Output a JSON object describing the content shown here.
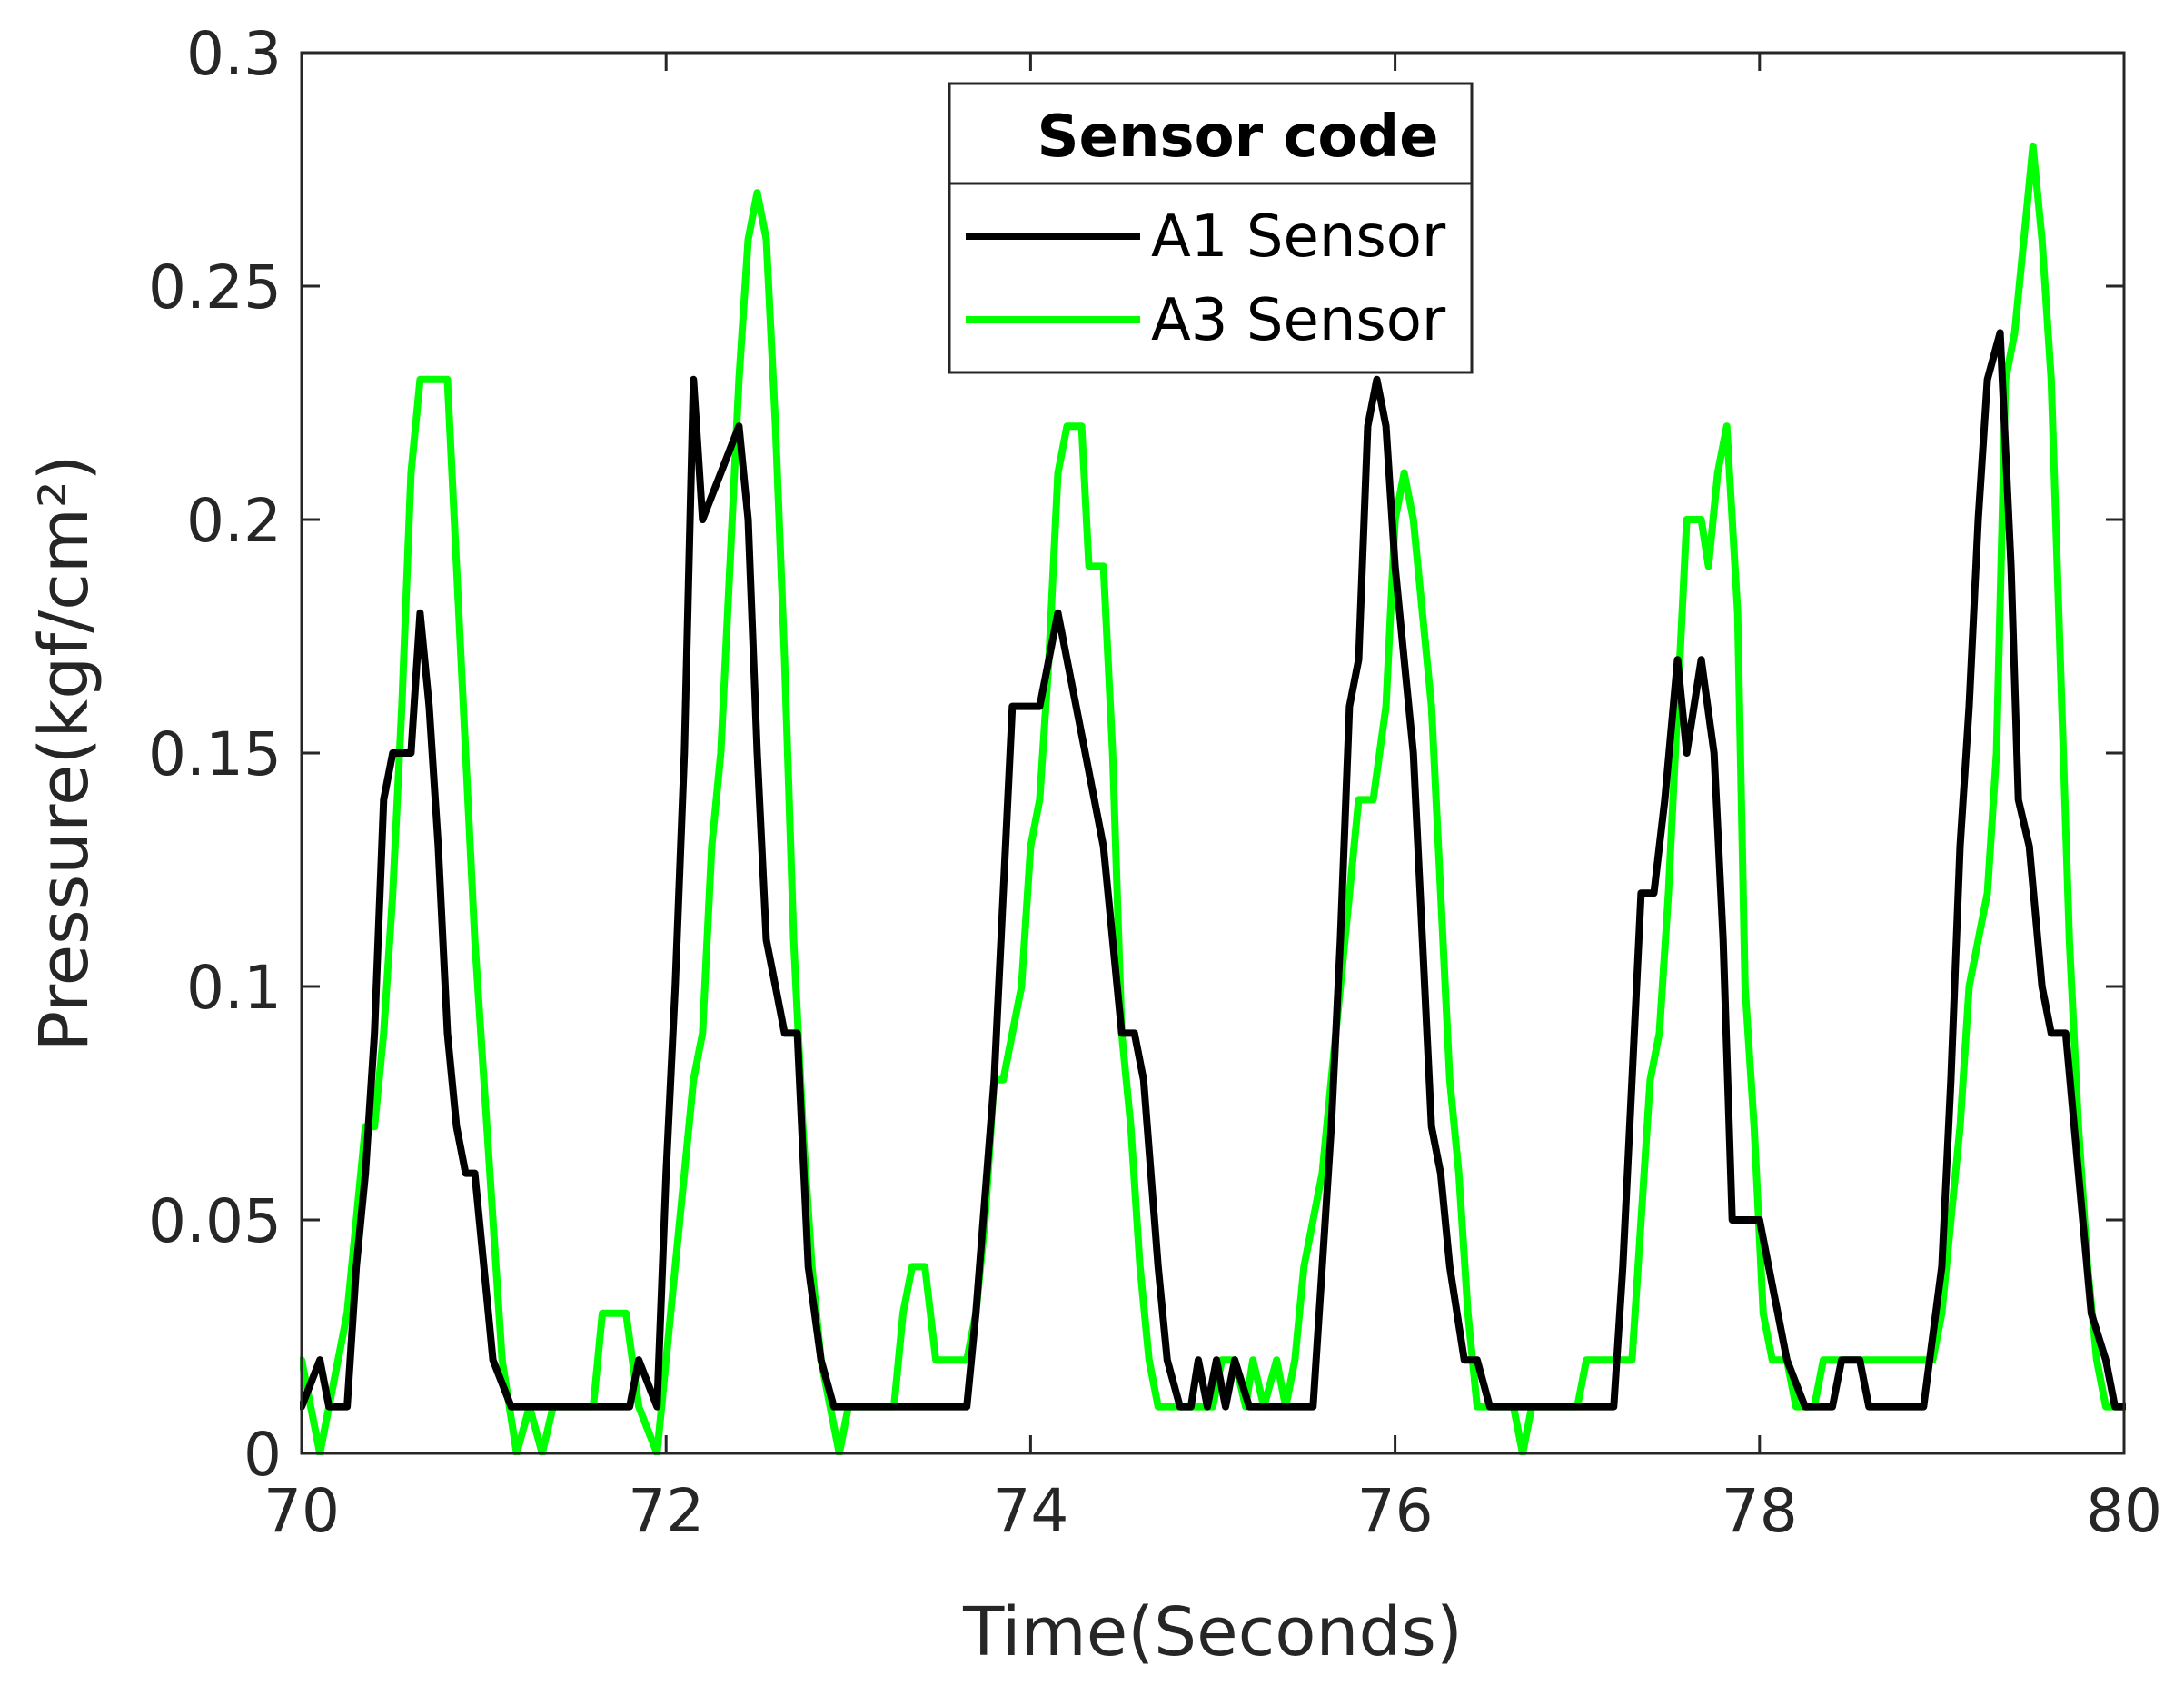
{
  "chart_data": {
    "type": "line",
    "title": "",
    "xlabel": "Time(Seconds)",
    "ylabel": "Pressure(kgf/cm²)",
    "xlim": [
      70,
      80
    ],
    "ylim": [
      0,
      0.3
    ],
    "xticks": [
      70,
      72,
      74,
      76,
      78,
      80
    ],
    "yticks": [
      0,
      0.05,
      0.1,
      0.15,
      0.2,
      0.25,
      0.3
    ],
    "x_tick_labels": [
      "70",
      "72",
      "74",
      "76",
      "78",
      "80"
    ],
    "y_tick_labels": [
      "0",
      "0.05",
      "0.1",
      "0.15",
      "0.2",
      "0.25",
      "0.3"
    ],
    "grid": false,
    "box": true,
    "legend": {
      "title": "Sensor code",
      "position": "top-center"
    },
    "series": [
      {
        "name": "A1 Sensor",
        "color": "#000000",
        "points": [
          [
            70.0,
            0.01
          ],
          [
            70.1,
            0.02
          ],
          [
            70.15,
            0.01
          ],
          [
            70.25,
            0.01
          ],
          [
            70.3,
            0.04
          ],
          [
            70.35,
            0.06
          ],
          [
            70.4,
            0.09
          ],
          [
            70.45,
            0.14
          ],
          [
            70.5,
            0.15
          ],
          [
            70.6,
            0.15
          ],
          [
            70.65,
            0.18
          ],
          [
            70.7,
            0.16
          ],
          [
            70.75,
            0.13
          ],
          [
            70.8,
            0.09
          ],
          [
            70.85,
            0.07
          ],
          [
            70.9,
            0.06
          ],
          [
            70.95,
            0.06
          ],
          [
            71.0,
            0.04
          ],
          [
            71.05,
            0.02
          ],
          [
            71.15,
            0.01
          ],
          [
            71.8,
            0.01
          ],
          [
            71.85,
            0.02
          ],
          [
            71.95,
            0.01
          ],
          [
            72.0,
            0.06
          ],
          [
            72.05,
            0.1
          ],
          [
            72.1,
            0.15
          ],
          [
            72.15,
            0.23
          ],
          [
            72.2,
            0.2
          ],
          [
            72.3,
            0.21
          ],
          [
            72.4,
            0.22
          ],
          [
            72.45,
            0.2
          ],
          [
            72.5,
            0.15
          ],
          [
            72.55,
            0.11
          ],
          [
            72.6,
            0.1
          ],
          [
            72.65,
            0.09
          ],
          [
            72.72,
            0.09
          ],
          [
            72.78,
            0.04
          ],
          [
            72.85,
            0.02
          ],
          [
            72.92,
            0.01
          ],
          [
            73.65,
            0.01
          ],
          [
            73.7,
            0.03
          ],
          [
            73.8,
            0.08
          ],
          [
            73.85,
            0.12
          ],
          [
            73.9,
            0.16
          ],
          [
            74.05,
            0.16
          ],
          [
            74.1,
            0.17
          ],
          [
            74.15,
            0.18
          ],
          [
            74.2,
            0.17
          ],
          [
            74.3,
            0.15
          ],
          [
            74.35,
            0.14
          ],
          [
            74.4,
            0.13
          ],
          [
            74.45,
            0.11
          ],
          [
            74.5,
            0.09
          ],
          [
            74.57,
            0.09
          ],
          [
            74.62,
            0.08
          ],
          [
            74.7,
            0.04
          ],
          [
            74.75,
            0.02
          ],
          [
            74.82,
            0.01
          ],
          [
            74.88,
            0.01
          ],
          [
            74.92,
            0.02
          ],
          [
            74.97,
            0.01
          ],
          [
            75.02,
            0.02
          ],
          [
            75.07,
            0.01
          ],
          [
            75.12,
            0.02
          ],
          [
            75.2,
            0.01
          ],
          [
            75.55,
            0.01
          ],
          [
            75.6,
            0.04
          ],
          [
            75.65,
            0.07
          ],
          [
            75.7,
            0.11
          ],
          [
            75.75,
            0.16
          ],
          [
            75.8,
            0.17
          ],
          [
            75.85,
            0.22
          ],
          [
            75.9,
            0.23
          ],
          [
            75.95,
            0.22
          ],
          [
            76.0,
            0.19
          ],
          [
            76.05,
            0.17
          ],
          [
            76.1,
            0.15
          ],
          [
            76.15,
            0.11
          ],
          [
            76.2,
            0.07
          ],
          [
            76.25,
            0.06
          ],
          [
            76.3,
            0.04
          ],
          [
            76.38,
            0.02
          ],
          [
            76.45,
            0.02
          ],
          [
            76.52,
            0.01
          ],
          [
            77.2,
            0.01
          ],
          [
            77.25,
            0.04
          ],
          [
            77.3,
            0.08
          ],
          [
            77.35,
            0.12
          ],
          [
            77.42,
            0.12
          ],
          [
            77.48,
            0.14
          ],
          [
            77.55,
            0.17
          ],
          [
            77.6,
            0.15
          ],
          [
            77.68,
            0.17
          ],
          [
            77.75,
            0.15
          ],
          [
            77.8,
            0.11
          ],
          [
            77.85,
            0.05
          ],
          [
            78.0,
            0.05
          ],
          [
            78.05,
            0.04
          ],
          [
            78.1,
            0.03
          ],
          [
            78.15,
            0.02
          ],
          [
            78.25,
            0.01
          ],
          [
            78.4,
            0.01
          ],
          [
            78.45,
            0.02
          ],
          [
            78.55,
            0.02
          ],
          [
            78.6,
            0.01
          ],
          [
            78.9,
            0.01
          ],
          [
            79.0,
            0.04
          ],
          [
            79.05,
            0.08
          ],
          [
            79.1,
            0.13
          ],
          [
            79.15,
            0.16
          ],
          [
            79.2,
            0.2
          ],
          [
            79.25,
            0.23
          ],
          [
            79.32,
            0.24
          ],
          [
            79.38,
            0.19
          ],
          [
            79.42,
            0.14
          ],
          [
            79.48,
            0.13
          ],
          [
            79.55,
            0.1
          ],
          [
            79.6,
            0.09
          ],
          [
            79.68,
            0.09
          ],
          [
            79.75,
            0.06
          ],
          [
            79.82,
            0.03
          ],
          [
            79.9,
            0.02
          ],
          [
            79.95,
            0.01
          ],
          [
            80.0,
            0.01
          ]
        ]
      },
      {
        "name": "A3 Sensor",
        "color": "#00ff00",
        "points": [
          [
            70.0,
            0.02
          ],
          [
            70.05,
            0.01
          ],
          [
            70.1,
            0.0
          ],
          [
            70.15,
            0.01
          ],
          [
            70.2,
            0.02
          ],
          [
            70.25,
            0.03
          ],
          [
            70.3,
            0.05
          ],
          [
            70.35,
            0.07
          ],
          [
            70.4,
            0.07
          ],
          [
            70.45,
            0.09
          ],
          [
            70.5,
            0.12
          ],
          [
            70.55,
            0.16
          ],
          [
            70.6,
            0.21
          ],
          [
            70.65,
            0.23
          ],
          [
            70.8,
            0.23
          ],
          [
            70.85,
            0.19
          ],
          [
            70.9,
            0.15
          ],
          [
            70.95,
            0.11
          ],
          [
            71.0,
            0.08
          ],
          [
            71.05,
            0.05
          ],
          [
            71.1,
            0.02
          ],
          [
            71.18,
            0.0
          ],
          [
            71.25,
            0.01
          ],
          [
            71.32,
            0.0
          ],
          [
            71.38,
            0.01
          ],
          [
            71.6,
            0.01
          ],
          [
            71.65,
            0.03
          ],
          [
            71.78,
            0.03
          ],
          [
            71.85,
            0.01
          ],
          [
            71.95,
            0.0
          ],
          [
            72.0,
            0.02
          ],
          [
            72.05,
            0.04
          ],
          [
            72.1,
            0.06
          ],
          [
            72.15,
            0.08
          ],
          [
            72.2,
            0.09
          ],
          [
            72.25,
            0.13
          ],
          [
            72.3,
            0.15
          ],
          [
            72.35,
            0.19
          ],
          [
            72.4,
            0.23
          ],
          [
            72.45,
            0.26
          ],
          [
            72.5,
            0.27
          ],
          [
            72.55,
            0.26
          ],
          [
            72.6,
            0.22
          ],
          [
            72.65,
            0.17
          ],
          [
            72.7,
            0.11
          ],
          [
            72.75,
            0.07
          ],
          [
            72.8,
            0.04
          ],
          [
            72.85,
            0.02
          ],
          [
            72.95,
            0.0
          ],
          [
            73.0,
            0.01
          ],
          [
            73.25,
            0.01
          ],
          [
            73.3,
            0.03
          ],
          [
            73.35,
            0.04
          ],
          [
            73.42,
            0.04
          ],
          [
            73.48,
            0.02
          ],
          [
            73.65,
            0.02
          ],
          [
            73.7,
            0.03
          ],
          [
            73.75,
            0.05
          ],
          [
            73.8,
            0.08
          ],
          [
            73.85,
            0.08
          ],
          [
            73.9,
            0.09
          ],
          [
            73.95,
            0.1
          ],
          [
            74.0,
            0.13
          ],
          [
            74.05,
            0.14
          ],
          [
            74.1,
            0.17
          ],
          [
            74.15,
            0.21
          ],
          [
            74.2,
            0.22
          ],
          [
            74.28,
            0.22
          ],
          [
            74.32,
            0.19
          ],
          [
            74.4,
            0.19
          ],
          [
            74.45,
            0.15
          ],
          [
            74.5,
            0.09
          ],
          [
            74.55,
            0.07
          ],
          [
            74.6,
            0.04
          ],
          [
            74.65,
            0.02
          ],
          [
            74.7,
            0.01
          ],
          [
            75.0,
            0.01
          ],
          [
            75.05,
            0.02
          ],
          [
            75.12,
            0.02
          ],
          [
            75.18,
            0.01
          ],
          [
            75.22,
            0.02
          ],
          [
            75.28,
            0.01
          ],
          [
            75.35,
            0.02
          ],
          [
            75.4,
            0.01
          ],
          [
            75.45,
            0.02
          ],
          [
            75.5,
            0.04
          ],
          [
            75.6,
            0.06
          ],
          [
            75.65,
            0.08
          ],
          [
            75.7,
            0.1
          ],
          [
            75.75,
            0.12
          ],
          [
            75.8,
            0.14
          ],
          [
            75.88,
            0.14
          ],
          [
            75.95,
            0.16
          ],
          [
            76.0,
            0.2
          ],
          [
            76.05,
            0.21
          ],
          [
            76.1,
            0.2
          ],
          [
            76.15,
            0.18
          ],
          [
            76.2,
            0.16
          ],
          [
            76.25,
            0.12
          ],
          [
            76.3,
            0.08
          ],
          [
            76.35,
            0.06
          ],
          [
            76.4,
            0.03
          ],
          [
            76.45,
            0.01
          ],
          [
            76.65,
            0.01
          ],
          [
            76.7,
            0.0
          ],
          [
            76.75,
            0.01
          ],
          [
            77.0,
            0.01
          ],
          [
            77.05,
            0.02
          ],
          [
            77.3,
            0.02
          ],
          [
            77.35,
            0.05
          ],
          [
            77.4,
            0.08
          ],
          [
            77.45,
            0.09
          ],
          [
            77.5,
            0.12
          ],
          [
            77.55,
            0.16
          ],
          [
            77.6,
            0.2
          ],
          [
            77.68,
            0.2
          ],
          [
            77.72,
            0.19
          ],
          [
            77.77,
            0.21
          ],
          [
            77.82,
            0.22
          ],
          [
            77.88,
            0.18
          ],
          [
            77.92,
            0.1
          ],
          [
            77.97,
            0.07
          ],
          [
            78.02,
            0.03
          ],
          [
            78.07,
            0.02
          ],
          [
            78.15,
            0.02
          ],
          [
            78.2,
            0.01
          ],
          [
            78.3,
            0.01
          ],
          [
            78.35,
            0.02
          ],
          [
            78.95,
            0.02
          ],
          [
            79.0,
            0.03
          ],
          [
            79.05,
            0.05
          ],
          [
            79.1,
            0.07
          ],
          [
            79.15,
            0.1
          ],
          [
            79.2,
            0.11
          ],
          [
            79.25,
            0.12
          ],
          [
            79.3,
            0.15
          ],
          [
            79.35,
            0.23
          ],
          [
            79.4,
            0.24
          ],
          [
            79.45,
            0.26
          ],
          [
            79.5,
            0.28
          ],
          [
            79.55,
            0.26
          ],
          [
            79.6,
            0.23
          ],
          [
            79.65,
            0.17
          ],
          [
            79.7,
            0.11
          ],
          [
            79.75,
            0.07
          ],
          [
            79.8,
            0.04
          ],
          [
            79.85,
            0.02
          ],
          [
            79.9,
            0.01
          ],
          [
            80.0,
            0.01
          ]
        ]
      }
    ]
  }
}
